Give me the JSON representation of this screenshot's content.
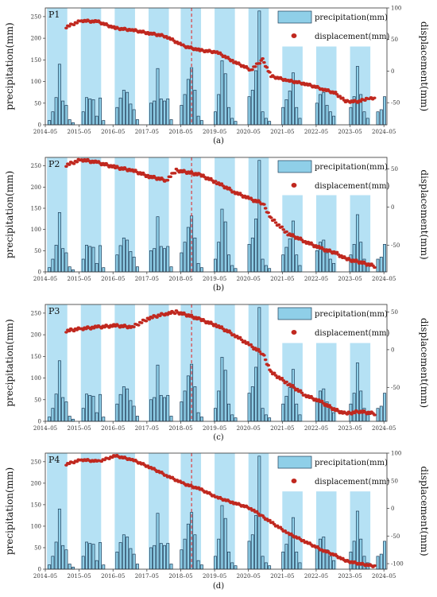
{
  "chart_data": [
    {
      "type": "bar+scatter",
      "panel_label": "P1",
      "caption": "(a)",
      "ylabel_left": "precipitation(mm)",
      "ylabel_right": "displacement(mm)",
      "legend": [
        "precipitation(mm)",
        "displacement(mm)"
      ],
      "x_ticks": [
        "2014–05",
        "2015–05",
        "2016–05",
        "2017–05",
        "2018–05",
        "2019–05",
        "2020–05",
        "2021–05",
        "2022–05",
        "2023–05",
        "2024–05"
      ],
      "y_left_ticks": [
        0,
        50,
        100,
        150,
        200,
        250
      ],
      "y_left_range": [
        0,
        270
      ],
      "y_right_ticks": [
        -50,
        0,
        50,
        100
      ],
      "y_right_range": [
        -85,
        100
      ],
      "dashed_line_x": 2018.65,
      "displacement": [
        [
          2014.95,
          70
        ],
        [
          2015.4,
          80
        ],
        [
          2015.9,
          78
        ],
        [
          2016.4,
          68
        ],
        [
          2016.9,
          65
        ],
        [
          2017.4,
          60
        ],
        [
          2017.9,
          55
        ],
        [
          2018.4,
          40
        ],
        [
          2018.9,
          33
        ],
        [
          2019.4,
          30
        ],
        [
          2019.9,
          15
        ],
        [
          2020.4,
          2
        ],
        [
          2020.75,
          18
        ],
        [
          2021.0,
          -8
        ],
        [
          2021.5,
          -15
        ],
        [
          2022.0,
          -20
        ],
        [
          2022.5,
          -28
        ],
        [
          2022.9,
          -35
        ],
        [
          2023.2,
          -48
        ],
        [
          2023.6,
          -48
        ],
        [
          2023.9,
          -42
        ],
        [
          2024.1,
          -45
        ]
      ]
    },
    {
      "type": "bar+scatter",
      "panel_label": "P2",
      "caption": "(b)",
      "ylabel_left": "precipitation(mm)",
      "ylabel_right": "displacement(mm)",
      "legend": [
        "precipitation(mm)",
        "displacement(mm)"
      ],
      "x_ticks": [
        "2014–05",
        "2015–05",
        "2016–05",
        "2017–05",
        "2018–05",
        "2019–05",
        "2020–05",
        "2021–05",
        "2022–05",
        "2023–05",
        "2024–05"
      ],
      "y_left_ticks": [
        0,
        50,
        100,
        150,
        200,
        250
      ],
      "y_left_range": [
        0,
        270
      ],
      "y_right_ticks": [
        -50,
        0,
        50
      ],
      "y_right_range": [
        -85,
        65
      ],
      "dashed_line_x": 2018.65,
      "displacement": [
        [
          2014.95,
          55
        ],
        [
          2015.4,
          62
        ],
        [
          2015.9,
          58
        ],
        [
          2016.4,
          52
        ],
        [
          2016.9,
          48
        ],
        [
          2017.4,
          40
        ],
        [
          2017.9,
          35
        ],
        [
          2018.2,
          48
        ],
        [
          2018.6,
          45
        ],
        [
          2018.9,
          42
        ],
        [
          2019.4,
          32
        ],
        [
          2019.9,
          20
        ],
        [
          2020.4,
          10
        ],
        [
          2020.75,
          5
        ],
        [
          2021.0,
          -15
        ],
        [
          2021.5,
          -35
        ],
        [
          2022.0,
          -45
        ],
        [
          2022.5,
          -55
        ],
        [
          2022.9,
          -60
        ],
        [
          2023.2,
          -68
        ],
        [
          2023.6,
          -72
        ],
        [
          2024.1,
          -78
        ]
      ]
    },
    {
      "type": "bar+scatter",
      "panel_label": "P3",
      "caption": "(c)",
      "ylabel_left": "precipitation(mm)",
      "ylabel_right": "displacement(mm)",
      "legend": [
        "precipitation(mm)",
        "displacement(mm)"
      ],
      "x_ticks": [
        "2014–05",
        "2015–05",
        "2016–05",
        "2017–05",
        "2018–05",
        "2019–05",
        "2020–05",
        "2021–05",
        "2022–05",
        "2023–05",
        "2024–05"
      ],
      "y_left_ticks": [
        0,
        50,
        100,
        150,
        200,
        250
      ],
      "y_left_range": [
        0,
        270
      ],
      "y_right_ticks": [
        -50,
        0,
        50
      ],
      "y_right_range": [
        -95,
        60
      ],
      "dashed_line_x": 2018.65,
      "displacement": [
        [
          2014.95,
          25
        ],
        [
          2015.4,
          28
        ],
        [
          2015.9,
          30
        ],
        [
          2016.4,
          32
        ],
        [
          2016.9,
          30
        ],
        [
          2017.4,
          42
        ],
        [
          2017.9,
          48
        ],
        [
          2018.2,
          50
        ],
        [
          2018.6,
          45
        ],
        [
          2018.9,
          40
        ],
        [
          2019.4,
          32
        ],
        [
          2019.9,
          20
        ],
        [
          2020.4,
          5
        ],
        [
          2020.75,
          -5
        ],
        [
          2021.0,
          -30
        ],
        [
          2021.5,
          -45
        ],
        [
          2022.0,
          -60
        ],
        [
          2022.5,
          -70
        ],
        [
          2022.9,
          -80
        ],
        [
          2023.2,
          -85
        ],
        [
          2023.6,
          -82
        ],
        [
          2024.1,
          -85
        ]
      ]
    },
    {
      "type": "bar+scatter",
      "panel_label": "P4",
      "caption": "(d)",
      "ylabel_left": "precipitation(mm)",
      "ylabel_right": "displacement(mm)",
      "legend": [
        "precipitation(mm)",
        "displacement(mm)"
      ],
      "x_ticks": [
        "2014–05",
        "2015–05",
        "2016–05",
        "2017–05",
        "2018–05",
        "2019–05",
        "2020–05",
        "2021–05",
        "2022–05",
        "2023–05",
        "2024–05"
      ],
      "y_left_ticks": [
        0,
        50,
        100,
        150,
        200,
        250
      ],
      "y_left_range": [
        0,
        270
      ],
      "y_right_ticks": [
        -100,
        -50,
        0,
        50,
        100
      ],
      "y_right_range": [
        -110,
        100
      ],
      "dashed_line_x": 2018.65,
      "displacement": [
        [
          2014.95,
          80
        ],
        [
          2015.4,
          88
        ],
        [
          2015.9,
          85
        ],
        [
          2016.4,
          95
        ],
        [
          2016.9,
          88
        ],
        [
          2017.4,
          75
        ],
        [
          2017.9,
          60
        ],
        [
          2018.4,
          45
        ],
        [
          2018.9,
          35
        ],
        [
          2019.4,
          20
        ],
        [
          2019.9,
          10
        ],
        [
          2020.4,
          0
        ],
        [
          2020.75,
          -15
        ],
        [
          2021.0,
          -25
        ],
        [
          2021.5,
          -45
        ],
        [
          2022.0,
          -60
        ],
        [
          2022.5,
          -75
        ],
        [
          2022.9,
          -85
        ],
        [
          2023.2,
          -95
        ],
        [
          2023.6,
          -100
        ],
        [
          2024.1,
          -105
        ]
      ]
    }
  ],
  "precipitation": [
    [
      2014.45,
      10
    ],
    [
      2014.55,
      30
    ],
    [
      2014.65,
      63
    ],
    [
      2014.75,
      140
    ],
    [
      2014.85,
      55
    ],
    [
      2014.95,
      45
    ],
    [
      2015.05,
      12
    ],
    [
      2015.15,
      5
    ],
    [
      2015.45,
      30
    ],
    [
      2015.55,
      63
    ],
    [
      2015.65,
      60
    ],
    [
      2015.75,
      58
    ],
    [
      2015.85,
      20
    ],
    [
      2015.95,
      62
    ],
    [
      2016.05,
      10
    ],
    [
      2016.45,
      40
    ],
    [
      2016.55,
      62
    ],
    [
      2016.65,
      80
    ],
    [
      2016.75,
      75
    ],
    [
      2016.85,
      48
    ],
    [
      2016.95,
      35
    ],
    [
      2017.05,
      12
    ],
    [
      2017.45,
      50
    ],
    [
      2017.55,
      55
    ],
    [
      2017.65,
      130
    ],
    [
      2017.75,
      60
    ],
    [
      2017.85,
      55
    ],
    [
      2017.95,
      60
    ],
    [
      2018.05,
      12
    ],
    [
      2018.35,
      45
    ],
    [
      2018.45,
      70
    ],
    [
      2018.55,
      105
    ],
    [
      2018.65,
      132
    ],
    [
      2018.75,
      80
    ],
    [
      2018.85,
      20
    ],
    [
      2018.95,
      10
    ],
    [
      2019.35,
      30
    ],
    [
      2019.45,
      70
    ],
    [
      2019.55,
      148
    ],
    [
      2019.65,
      118
    ],
    [
      2019.75,
      40
    ],
    [
      2019.85,
      15
    ],
    [
      2019.95,
      8
    ],
    [
      2020.35,
      65
    ],
    [
      2020.45,
      80
    ],
    [
      2020.55,
      125
    ],
    [
      2020.65,
      263
    ],
    [
      2020.75,
      30
    ],
    [
      2020.85,
      15
    ],
    [
      2020.95,
      8
    ],
    [
      2021.35,
      40
    ],
    [
      2021.45,
      58
    ],
    [
      2021.55,
      78
    ],
    [
      2021.65,
      120
    ],
    [
      2021.75,
      40
    ],
    [
      2021.85,
      15
    ],
    [
      2022.35,
      50
    ],
    [
      2022.45,
      70
    ],
    [
      2022.55,
      75
    ],
    [
      2022.65,
      45
    ],
    [
      2022.75,
      30
    ],
    [
      2022.85,
      20
    ],
    [
      2023.35,
      40
    ],
    [
      2023.45,
      65
    ],
    [
      2023.55,
      135
    ],
    [
      2023.65,
      70
    ],
    [
      2023.75,
      30
    ],
    [
      2023.85,
      15
    ],
    [
      2024.15,
      30
    ],
    [
      2024.25,
      35
    ],
    [
      2024.35,
      65
    ]
  ],
  "shade_color": "#a8dcf2",
  "bar_color": "#8fcfe8",
  "dot_color": "#c0281f",
  "dash_color": "#e03030"
}
